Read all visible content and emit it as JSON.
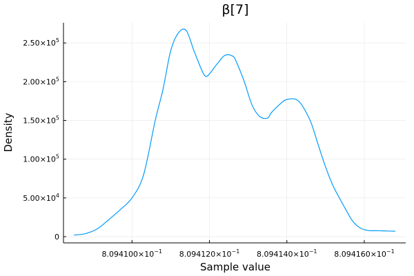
{
  "chart_data": {
    "type": "line",
    "title": "β[7]",
    "xlabel": "Sample value",
    "ylabel": "Density",
    "grid": true,
    "legend": "none",
    "line_color": "#009AFA",
    "grid_color": "#E5E5E5",
    "axis_color": "#000000",
    "xlim": [
      0.80940823,
      0.80941707
    ],
    "ylim": [
      -8000,
      276000
    ],
    "x_ticks": [
      {
        "value": 0.80941,
        "mantissa": "8.094100",
        "base": "×10",
        "exp": "−1"
      },
      {
        "value": 0.809412,
        "mantissa": "8.094120",
        "base": "×10",
        "exp": "−1"
      },
      {
        "value": 0.809414,
        "mantissa": "8.094140",
        "base": "×10",
        "exp": "−1"
      },
      {
        "value": 0.809416,
        "mantissa": "8.094160",
        "base": "×10",
        "exp": "−1"
      }
    ],
    "y_ticks": [
      {
        "value": 0,
        "mantissa": "0",
        "base": "",
        "exp": ""
      },
      {
        "value": 50000,
        "mantissa": "5.00",
        "base": "×10",
        "exp": "4"
      },
      {
        "value": 100000,
        "mantissa": "1.00",
        "base": "×10",
        "exp": "5"
      },
      {
        "value": 150000,
        "mantissa": "1.50",
        "base": "×10",
        "exp": "5"
      },
      {
        "value": 200000,
        "mantissa": "2.00",
        "base": "×10",
        "exp": "5"
      },
      {
        "value": 250000,
        "mantissa": "2.50",
        "base": "×10",
        "exp": "5"
      }
    ],
    "series": [
      {
        "name": "β[7]",
        "x": [
          0.8094085,
          0.8094088,
          0.8094091,
          0.8094094,
          0.8094097,
          0.80941,
          0.8094103,
          0.8094106,
          0.8094108,
          0.809411,
          0.8094112,
          0.8094114,
          0.8094116,
          0.8094118,
          0.8094119,
          0.809412,
          0.8094122,
          0.8094124,
          0.8094126,
          0.8094127,
          0.8094129,
          0.8094131,
          0.8094133,
          0.8094135,
          0.8094136,
          0.8094138,
          0.809414,
          0.8094143,
          0.8094146,
          0.8094148,
          0.809415,
          0.8094152,
          0.8094155,
          0.8094157,
          0.8094159,
          0.8094161,
          0.8094163,
          0.8094165,
          0.8094168
        ],
        "y": [
          2000,
          4000,
          10000,
          22000,
          35000,
          50000,
          80000,
          150000,
          190000,
          240000,
          263000,
          266000,
          240000,
          215000,
          207000,
          210000,
          223000,
          234000,
          233000,
          225000,
          200000,
          170000,
          155000,
          153000,
          160000,
          170000,
          177000,
          175000,
          150000,
          120000,
          90000,
          65000,
          37000,
          20000,
          11000,
          8000,
          7700,
          7500,
          7000
        ]
      }
    ]
  }
}
